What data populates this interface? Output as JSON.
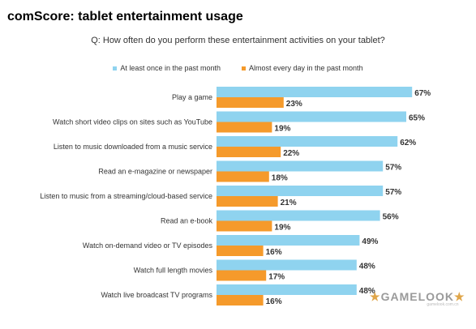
{
  "heading": "comScore: tablet entertainment usage",
  "chart_data": {
    "type": "bar",
    "orientation": "horizontal",
    "title": "Q: How often do you perform these entertainment activities on your tablet?",
    "categories": [
      "Play a game",
      "Watch short video clips on sites such as YouTube",
      "Listen to music downloaded from a music service",
      "Read an e-magazine or newspaper",
      "Listen to music from a streaming/cloud-based service",
      "Read an e-book",
      "Watch on-demand video or TV episodes",
      "Watch full length movies",
      "Watch live broadcast TV programs"
    ],
    "series": [
      {
        "name": "At least once in the past month",
        "color": "#8fd3ef",
        "values": [
          67,
          65,
          62,
          57,
          57,
          56,
          49,
          48,
          48
        ],
        "labels": [
          "67%",
          "65%",
          "62%",
          "57%",
          "57%",
          "56%",
          "49%",
          "48%",
          "48%"
        ]
      },
      {
        "name": "Almost every day in the past month",
        "color": "#f59a2b",
        "values": [
          23,
          19,
          22,
          18,
          21,
          19,
          16,
          17,
          16
        ],
        "labels": [
          "23%",
          "19%",
          "22%",
          "18%",
          "21%",
          "19%",
          "16%",
          "17%",
          "16%"
        ]
      }
    ],
    "value_format": "percent",
    "legend_position": "top",
    "grid": false
  },
  "watermark": {
    "text": "GAMELOOK",
    "subtext": "gamelook.com.cn",
    "star_color": "#e0a64a",
    "text_color": "#9a9a9a"
  }
}
